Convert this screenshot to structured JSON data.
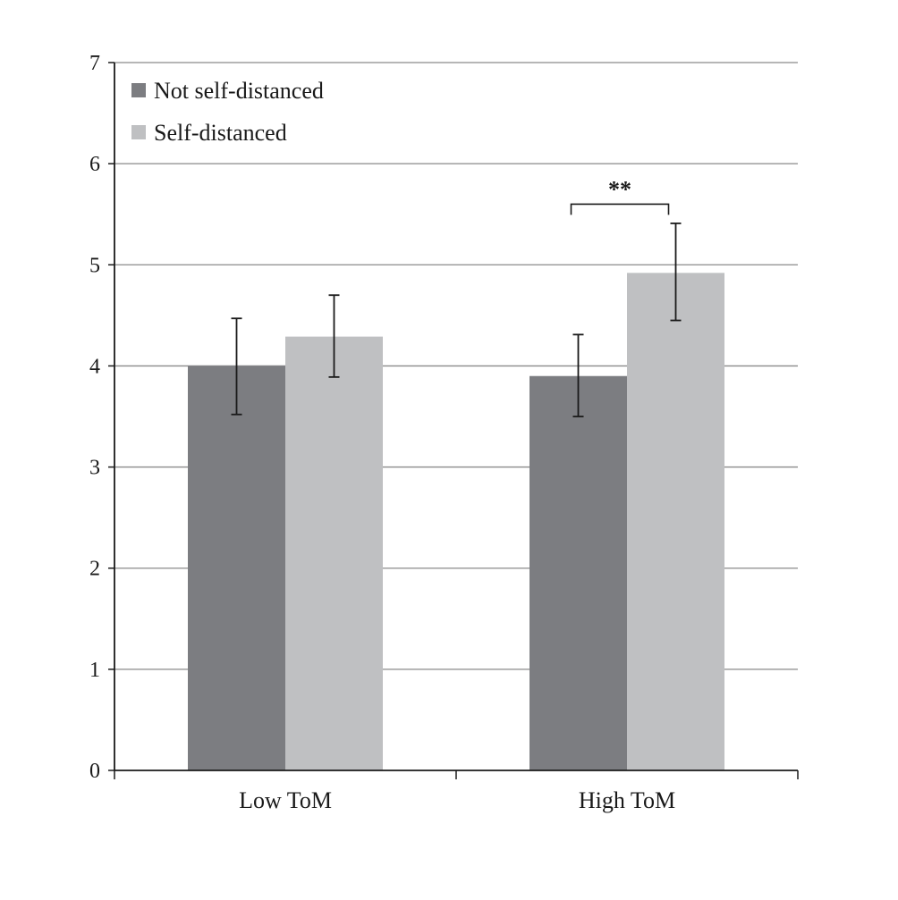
{
  "chart_data": {
    "type": "bar",
    "title": "",
    "xlabel": "",
    "ylabel": "",
    "ylim": [
      0,
      7
    ],
    "yticks": [
      0,
      1,
      2,
      3,
      4,
      5,
      6,
      7
    ],
    "grid": true,
    "legend_position": "top-left",
    "categories": [
      "Low ToM",
      "High ToM"
    ],
    "series": [
      {
        "name": "Not self-distanced",
        "color": "#7c7d81",
        "values": [
          4.0,
          3.9
        ],
        "error": [
          [
            3.52,
            4.47
          ],
          [
            3.5,
            4.31
          ]
        ]
      },
      {
        "name": "Self-distanced",
        "color": "#bfc0c2",
        "values": [
          4.29,
          4.92
        ],
        "error": [
          [
            3.89,
            4.7
          ],
          [
            4.45,
            5.41
          ]
        ]
      }
    ],
    "annotations": [
      {
        "text": "**",
        "category": "High ToM",
        "between_series": [
          0,
          1
        ],
        "y": 5.6
      }
    ]
  }
}
